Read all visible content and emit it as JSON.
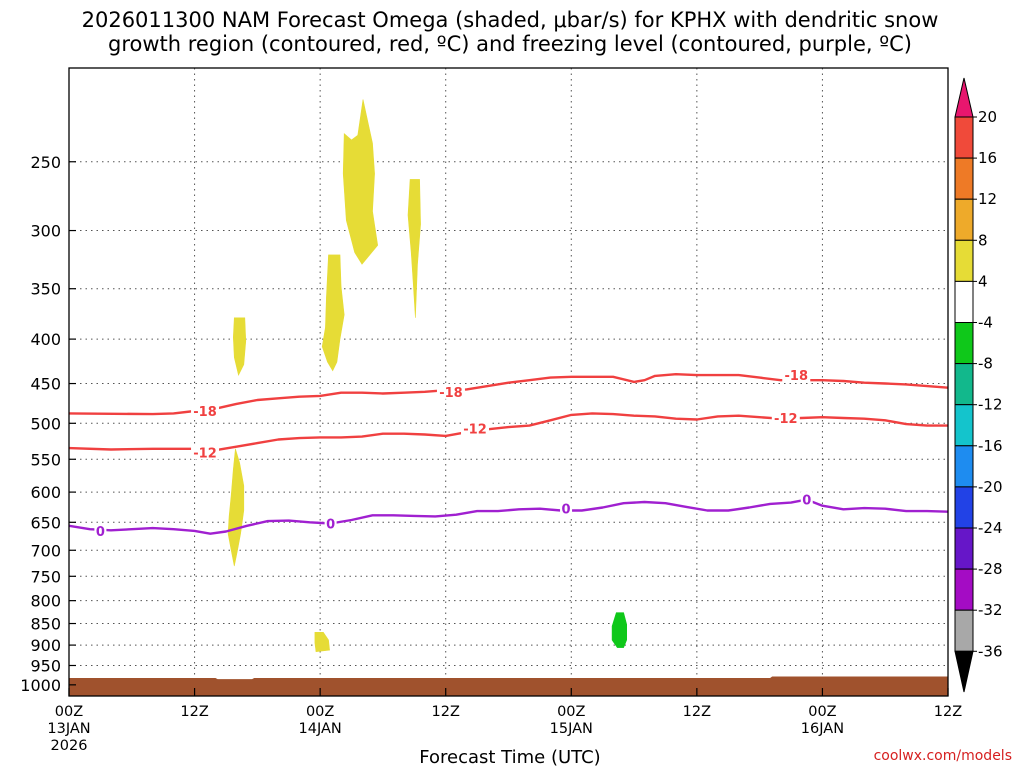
{
  "title_line1": "2026011300 NAM Forecast Omega (shaded, μbar/s) for KPHX with dendritic snow",
  "title_line2": "growth region (contoured, red, ºC) and freezing level (contoured, purple, ºC)",
  "watermark": "coolwx.com/models",
  "chart_data": {
    "type": "heatmap",
    "title": "2026011300 NAM Forecast Omega (shaded, μbar/s) for KPHX with dendritic snow growth region (contoured, red, ºC) and freezing level (contoured, purple, ºC)",
    "xlabel": "Forecast Time (UTC)",
    "ylabel": "",
    "xlim": [
      0,
      84
    ],
    "ylim": [
      1030,
      195
    ],
    "y_scale": "log (pressure, hPa)",
    "grid": true,
    "x_ticks": [
      {
        "hour": 0,
        "labels": [
          "00Z",
          "13JAN",
          "2026"
        ]
      },
      {
        "hour": 12,
        "labels": [
          "12Z"
        ]
      },
      {
        "hour": 24,
        "labels": [
          "00Z",
          "14JAN"
        ]
      },
      {
        "hour": 36,
        "labels": [
          "12Z"
        ]
      },
      {
        "hour": 48,
        "labels": [
          "00Z",
          "15JAN"
        ]
      },
      {
        "hour": 60,
        "labels": [
          "12Z"
        ]
      },
      {
        "hour": 72,
        "labels": [
          "00Z",
          "16JAN"
        ]
      },
      {
        "hour": 84,
        "labels": [
          "12Z"
        ]
      }
    ],
    "y_ticks": [
      250,
      300,
      350,
      400,
      450,
      500,
      550,
      600,
      650,
      700,
      750,
      800,
      850,
      900,
      950,
      1000
    ],
    "colorbar": {
      "labels": [
        "20",
        "16",
        "12",
        "8",
        "4",
        "-4",
        "-8",
        "-12",
        "-16",
        "-20",
        "-24",
        "-28",
        "-32",
        "-36"
      ],
      "colors": [
        "#e8166e",
        "#f04a3a",
        "#ee7a26",
        "#eeaa2a",
        "#e6dc36",
        "#ffffff",
        "#0fc81a",
        "#12b88c",
        "#14c4cc",
        "#1e8cf0",
        "#2242e6",
        "#6616c8",
        "#a40cc4",
        "#a8a8a8",
        "#000000"
      ]
    },
    "ground_color": "#a0522d",
    "ground_pressure": [
      [
        0,
        982
      ],
      [
        14,
        982
      ],
      [
        14.2,
        985
      ],
      [
        17.5,
        985
      ],
      [
        17.7,
        982
      ],
      [
        67,
        982
      ],
      [
        67.2,
        978
      ],
      [
        84,
        978
      ]
    ],
    "omega_regions": [
      {
        "value": 5,
        "color": "#e6dc36",
        "points": [
          [
            27.6,
            233
          ],
          [
            28.1,
            212
          ],
          [
            29.0,
            238
          ],
          [
            29.2,
            258
          ],
          [
            29.0,
            285
          ],
          [
            29.5,
            312
          ],
          [
            28.0,
            328
          ],
          [
            27.3,
            318
          ],
          [
            26.5,
            292
          ],
          [
            26.2,
            258
          ],
          [
            26.3,
            232
          ],
          [
            27.0,
            236
          ]
        ]
      },
      {
        "value": 5,
        "color": "#e6dc36",
        "points": [
          [
            32.6,
            262
          ],
          [
            33.5,
            262
          ],
          [
            33.6,
            295
          ],
          [
            33.3,
            328
          ],
          [
            33.1,
            378
          ],
          [
            32.9,
            346
          ],
          [
            32.7,
            318
          ],
          [
            32.4,
            288
          ]
        ]
      },
      {
        "value": 5,
        "color": "#e6dc36",
        "points": [
          [
            24.8,
            320
          ],
          [
            25.9,
            320
          ],
          [
            26.0,
            348
          ],
          [
            26.3,
            375
          ],
          [
            25.9,
            400
          ],
          [
            25.6,
            425
          ],
          [
            25.2,
            435
          ],
          [
            24.7,
            425
          ],
          [
            24.2,
            408
          ],
          [
            24.5,
            388
          ],
          [
            24.6,
            358
          ]
        ]
      },
      {
        "value": 5,
        "color": "#e6dc36",
        "points": [
          [
            15.8,
            378
          ],
          [
            16.8,
            378
          ],
          [
            16.9,
            402
          ],
          [
            16.7,
            428
          ],
          [
            16.2,
            440
          ],
          [
            15.8,
            420
          ],
          [
            15.7,
            398
          ]
        ]
      },
      {
        "value": 5,
        "color": "#e6dc36",
        "points": [
          [
            15.9,
            535
          ],
          [
            16.3,
            555
          ],
          [
            16.7,
            590
          ],
          [
            16.7,
            630
          ],
          [
            16.4,
            670
          ],
          [
            16.1,
            700
          ],
          [
            15.8,
            730
          ],
          [
            15.5,
            700
          ],
          [
            15.2,
            670
          ],
          [
            15.3,
            640
          ],
          [
            15.5,
            605
          ],
          [
            15.7,
            565
          ]
        ]
      },
      {
        "value": 5,
        "color": "#e6dc36",
        "points": [
          [
            23.5,
            870
          ],
          [
            24.3,
            870
          ],
          [
            24.8,
            888
          ],
          [
            24.9,
            912
          ],
          [
            23.6,
            916
          ],
          [
            23.5,
            895
          ]
        ]
      },
      {
        "value": -6,
        "color": "#0fc81a",
        "points": [
          [
            52.3,
            826
          ],
          [
            53.0,
            826
          ],
          [
            53.3,
            852
          ],
          [
            53.3,
            888
          ],
          [
            53.0,
            906
          ],
          [
            52.4,
            906
          ],
          [
            51.9,
            888
          ],
          [
            51.9,
            856
          ]
        ]
      }
    ],
    "dgz_lines": [
      {
        "label": "-18",
        "color": "#f04040",
        "label_positions": [
          [
            13,
            484
          ],
          [
            36.5,
            460
          ],
          [
            69.5,
            440
          ]
        ],
        "points": [
          [
            0,
            487
          ],
          [
            8,
            488
          ],
          [
            10,
            487
          ],
          [
            12,
            484
          ],
          [
            14,
            481
          ],
          [
            16,
            475
          ],
          [
            18,
            470
          ],
          [
            20,
            468
          ],
          [
            22,
            466
          ],
          [
            24,
            465
          ],
          [
            26,
            461
          ],
          [
            28,
            461
          ],
          [
            30,
            462
          ],
          [
            32,
            461
          ],
          [
            34,
            460
          ],
          [
            36,
            458
          ],
          [
            38,
            457
          ],
          [
            40,
            453
          ],
          [
            42,
            449
          ],
          [
            44,
            446
          ],
          [
            46,
            443
          ],
          [
            48,
            442
          ],
          [
            50,
            442
          ],
          [
            52,
            442
          ],
          [
            54,
            448
          ],
          [
            55,
            446
          ],
          [
            56,
            441
          ],
          [
            58,
            439
          ],
          [
            60,
            440
          ],
          [
            62,
            440
          ],
          [
            64,
            440
          ],
          [
            66,
            443
          ],
          [
            68,
            446
          ],
          [
            70,
            446
          ],
          [
            72,
            446
          ],
          [
            74,
            447
          ],
          [
            76,
            449
          ],
          [
            78,
            450
          ],
          [
            80,
            451
          ],
          [
            82,
            453
          ],
          [
            84,
            455
          ]
        ]
      },
      {
        "label": "-12",
        "color": "#f04040",
        "label_positions": [
          [
            13,
            540
          ],
          [
            38.8,
            507
          ],
          [
            68.5,
            493
          ]
        ],
        "points": [
          [
            0,
            534
          ],
          [
            4,
            536
          ],
          [
            8,
            535
          ],
          [
            12,
            535
          ],
          [
            14,
            537
          ],
          [
            16,
            532
          ],
          [
            18,
            527
          ],
          [
            20,
            522
          ],
          [
            22,
            520
          ],
          [
            24,
            519
          ],
          [
            26,
            519
          ],
          [
            28,
            518
          ],
          [
            30,
            514
          ],
          [
            32,
            514
          ],
          [
            34,
            515
          ],
          [
            36,
            517
          ],
          [
            38,
            512
          ],
          [
            40,
            508
          ],
          [
            42,
            505
          ],
          [
            44,
            503
          ],
          [
            46,
            496
          ],
          [
            48,
            489
          ],
          [
            50,
            487
          ],
          [
            52,
            488
          ],
          [
            54,
            490
          ],
          [
            56,
            491
          ],
          [
            58,
            494
          ],
          [
            60,
            495
          ],
          [
            62,
            491
          ],
          [
            64,
            490
          ],
          [
            66,
            492
          ],
          [
            68,
            494
          ],
          [
            70,
            493
          ],
          [
            72,
            492
          ],
          [
            74,
            493
          ],
          [
            76,
            494
          ],
          [
            78,
            496
          ],
          [
            80,
            501
          ],
          [
            82,
            503
          ],
          [
            84,
            503
          ]
        ]
      }
    ],
    "freezing_line": {
      "label": "0",
      "color": "#a020d0",
      "label_positions": [
        [
          3,
          665
        ],
        [
          25,
          652
        ],
        [
          47.5,
          627
        ],
        [
          70.5,
          612
        ]
      ],
      "points": [
        [
          0,
          656
        ],
        [
          2,
          662
        ],
        [
          4,
          664
        ],
        [
          6,
          662
        ],
        [
          8,
          660
        ],
        [
          10,
          662
        ],
        [
          12,
          665
        ],
        [
          13.5,
          670
        ],
        [
          15,
          666
        ],
        [
          17,
          656
        ],
        [
          19,
          648
        ],
        [
          21,
          647
        ],
        [
          23,
          650
        ],
        [
          25,
          652
        ],
        [
          27,
          646
        ],
        [
          29,
          638
        ],
        [
          31,
          638
        ],
        [
          33,
          639
        ],
        [
          35,
          640
        ],
        [
          37,
          637
        ],
        [
          39,
          631
        ],
        [
          41,
          631
        ],
        [
          43,
          628
        ],
        [
          45,
          627
        ],
        [
          47,
          630
        ],
        [
          49,
          630
        ],
        [
          51,
          625
        ],
        [
          53,
          618
        ],
        [
          55,
          616
        ],
        [
          57,
          618
        ],
        [
          59,
          624
        ],
        [
          61,
          630
        ],
        [
          63,
          630
        ],
        [
          65,
          625
        ],
        [
          67,
          619
        ],
        [
          69,
          617
        ],
        [
          70.5,
          612
        ],
        [
          72,
          622
        ],
        [
          74,
          628
        ],
        [
          76,
          626
        ],
        [
          78,
          627
        ],
        [
          80,
          631
        ],
        [
          82,
          631
        ],
        [
          84,
          632
        ]
      ]
    }
  }
}
